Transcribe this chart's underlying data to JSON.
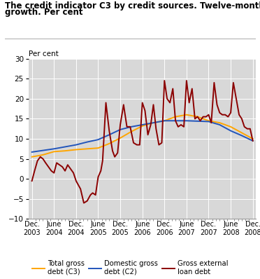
{
  "title_line1": "The credit indicator C3 by credit sources. Twelve-month",
  "title_line2": "growth. Per cent",
  "ylabel": "Per cent",
  "ylim": [
    -10,
    30
  ],
  "yticks": [
    -10,
    -5,
    0,
    5,
    10,
    15,
    20,
    25,
    30
  ],
  "background_color": "#d8d8d8",
  "x_labels": [
    "Dec.\n2003",
    "June\n2004",
    "Dec.\n2004",
    "June\n2005",
    "Dec.\n2005",
    "June\n2006",
    "Dec.\n2006",
    "June\n2007",
    "Dec.\n2007",
    "June\n2008",
    "Dec.\n2008"
  ],
  "x_positions": [
    0,
    1,
    2,
    3,
    4,
    5,
    6,
    7,
    8,
    9,
    10
  ],
  "total_x": [
    0.0,
    0.5,
    1.0,
    1.5,
    2.0,
    2.5,
    3.0,
    3.5,
    4.0,
    4.5,
    5.0,
    5.5,
    6.0,
    6.5,
    7.0,
    7.5,
    8.0,
    8.5,
    9.0,
    9.5,
    10.0
  ],
  "total_y": [
    5.5,
    6.0,
    6.8,
    7.0,
    7.3,
    7.5,
    7.7,
    8.8,
    10.2,
    11.8,
    13.2,
    14.0,
    14.5,
    15.5,
    16.0,
    15.5,
    14.5,
    14.0,
    13.0,
    11.5,
    10.0
  ],
  "domestic_x": [
    0.0,
    0.5,
    1.0,
    1.5,
    2.0,
    2.5,
    3.0,
    3.5,
    4.0,
    4.5,
    5.0,
    5.5,
    6.0,
    6.5,
    7.0,
    7.5,
    8.0,
    8.5,
    9.0,
    9.5,
    10.0
  ],
  "domestic_y": [
    6.7,
    7.1,
    7.5,
    8.0,
    8.5,
    9.2,
    9.8,
    11.0,
    12.3,
    13.0,
    13.5,
    14.0,
    14.5,
    14.5,
    14.5,
    14.4,
    14.3,
    13.5,
    12.0,
    10.8,
    9.5
  ],
  "external_x": [
    0.0,
    0.12,
    0.25,
    0.38,
    0.5,
    0.62,
    0.75,
    0.88,
    1.0,
    1.12,
    1.25,
    1.38,
    1.5,
    1.62,
    1.75,
    1.88,
    2.0,
    2.1,
    2.2,
    2.35,
    2.5,
    2.65,
    2.75,
    2.88,
    3.0,
    3.12,
    3.2,
    3.35,
    3.5,
    3.65,
    3.75,
    3.88,
    4.0,
    4.15,
    4.3,
    4.45,
    4.6,
    4.75,
    4.88,
    5.0,
    5.12,
    5.25,
    5.38,
    5.5,
    5.62,
    5.75,
    5.88,
    6.0,
    6.12,
    6.25,
    6.38,
    6.5,
    6.62,
    6.75,
    6.88,
    7.0,
    7.12,
    7.25,
    7.38,
    7.5,
    7.62,
    7.75,
    7.88,
    8.0,
    8.12,
    8.25,
    8.38,
    8.5,
    8.62,
    8.75,
    8.88,
    9.0,
    9.12,
    9.25,
    9.38,
    9.5,
    9.62,
    9.75,
    9.88,
    10.0
  ],
  "external_y": [
    -0.5,
    2.0,
    4.5,
    5.5,
    5.0,
    4.0,
    3.0,
    2.0,
    1.5,
    4.0,
    3.5,
    3.0,
    2.0,
    3.5,
    2.5,
    1.5,
    -0.5,
    -1.5,
    -2.5,
    -6.0,
    -5.5,
    -4.0,
    -3.5,
    -4.0,
    0.5,
    2.0,
    4.5,
    19.0,
    12.0,
    7.0,
    5.5,
    6.5,
    13.5,
    18.5,
    13.0,
    13.0,
    9.0,
    8.5,
    8.5,
    19.0,
    17.0,
    11.0,
    13.5,
    18.5,
    12.5,
    8.5,
    9.0,
    24.5,
    20.0,
    19.0,
    22.5,
    14.5,
    13.0,
    13.5,
    13.0,
    24.5,
    19.0,
    22.5,
    15.0,
    15.5,
    14.5,
    15.5,
    15.5,
    16.0,
    14.0,
    24.0,
    18.5,
    16.5,
    16.0,
    16.0,
    15.5,
    16.5,
    24.0,
    20.0,
    16.0,
    15.0,
    13.0,
    12.5,
    12.5,
    9.5
  ],
  "color_total": "#FFA500",
  "color_domestic": "#2255bb",
  "color_external": "#8b0000",
  "legend_labels": [
    "Total gross\ndebt (C3)",
    "Domestic gross\ndebt (C2)",
    "Gross external\nloan debt"
  ]
}
